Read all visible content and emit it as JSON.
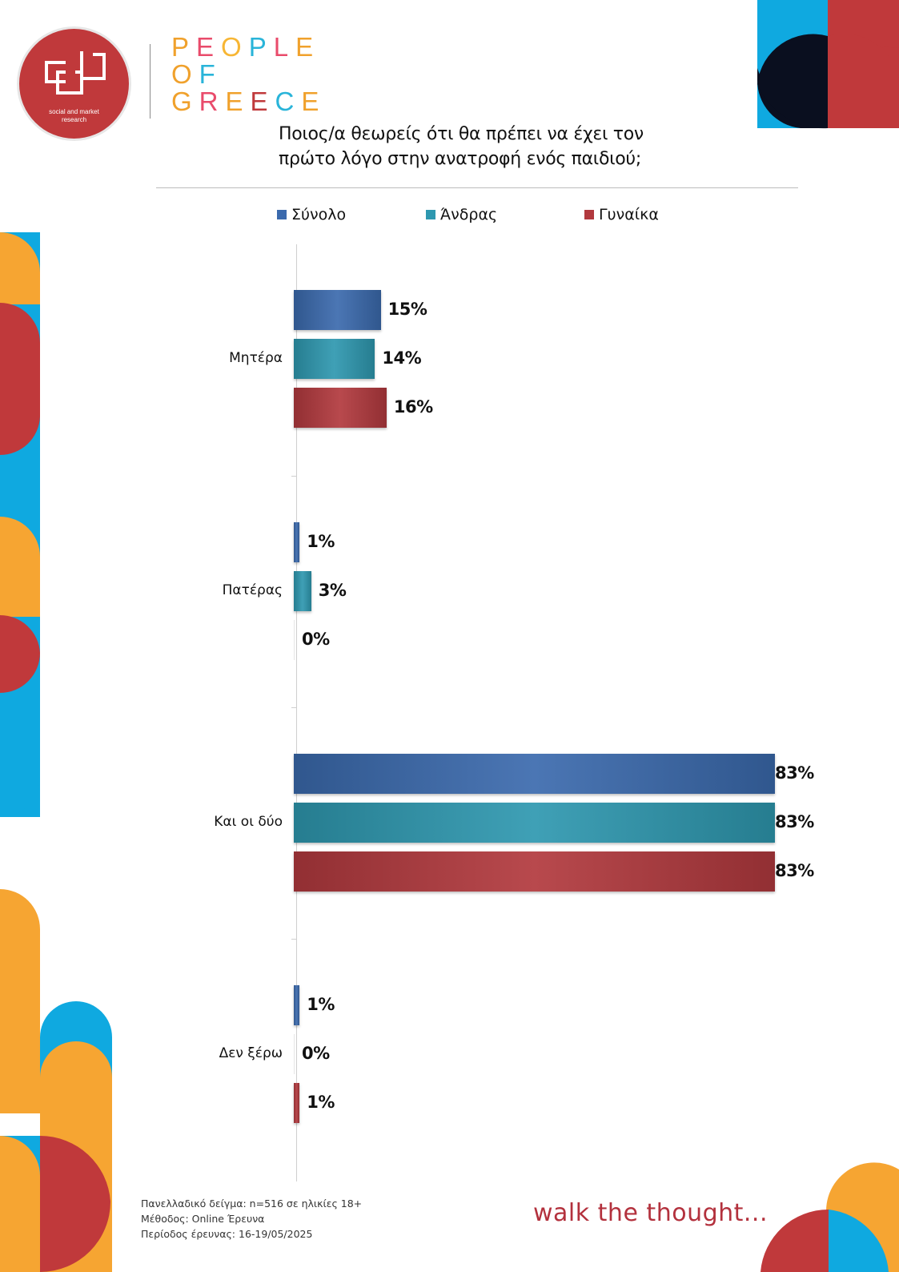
{
  "logo": {
    "tagline_line1": "social and market",
    "tagline_line2": "research"
  },
  "brand": {
    "line1": "PEOPLE",
    "line2": "OF",
    "line3": "GREECE",
    "letter_colors": {
      "line1": [
        "#f0a12c",
        "#e94b6b",
        "#f7b634",
        "#29b4d9",
        "#e94b6b",
        "#f0a12c"
      ],
      "line2": [
        "#f0a12c",
        "#29b4d9"
      ],
      "line3": [
        "#f0a12c",
        "#e94b6b",
        "#f0a12c",
        "#c0393b",
        "#29b4d9",
        "#f0a12c"
      ]
    }
  },
  "chart_data": {
    "type": "bar",
    "orientation": "horizontal",
    "title": "Ποιος/α θεωρείς ότι θα πρέπει να έχει τον πρώτο λόγο στην ανατροφή ενός παιδιού;",
    "title_line1": "Ποιος/α θεωρείς ότι θα πρέπει να έχει τον",
    "title_line2": "πρώτο λόγο στην ανατροφή ενός παιδιού;",
    "categories": [
      "Μητέρα",
      "Πατέρας",
      "Και οι δύο",
      "Δεν ξέρω"
    ],
    "series": [
      {
        "name": "Σύνολο",
        "values": [
          15,
          1,
          83,
          1
        ],
        "labels": [
          "15%",
          "1%",
          "83%",
          "1%"
        ],
        "color": "#3b6aad"
      },
      {
        "name": "Άνδρας",
        "values": [
          14,
          3,
          83,
          0
        ],
        "labels": [
          "14%",
          "3%",
          "83%",
          "0%"
        ],
        "color": "#2e98b0"
      },
      {
        "name": "Γυναίκα",
        "values": [
          16,
          0,
          83,
          1
        ],
        "labels": [
          "16%",
          "0%",
          "83%",
          "1%"
        ],
        "color": "#b2393e"
      }
    ],
    "xlim": [
      0,
      83
    ],
    "unit": "%",
    "legend_position": "top",
    "grid": false
  },
  "footnote": {
    "line1": "Πανελλαδικό δείγμα: n=516 σε ηλικίες 18+",
    "line2": "Μέθοδος: Online Έρευνα",
    "line3": "Περίοδος έρευνας: 16-19/05/2025"
  },
  "tagline": "walk the thought...",
  "colors": {
    "red": "#c0393b",
    "blue": "#0fa9e0",
    "orange": "#f6a532",
    "navy": "#0a0f1f"
  }
}
